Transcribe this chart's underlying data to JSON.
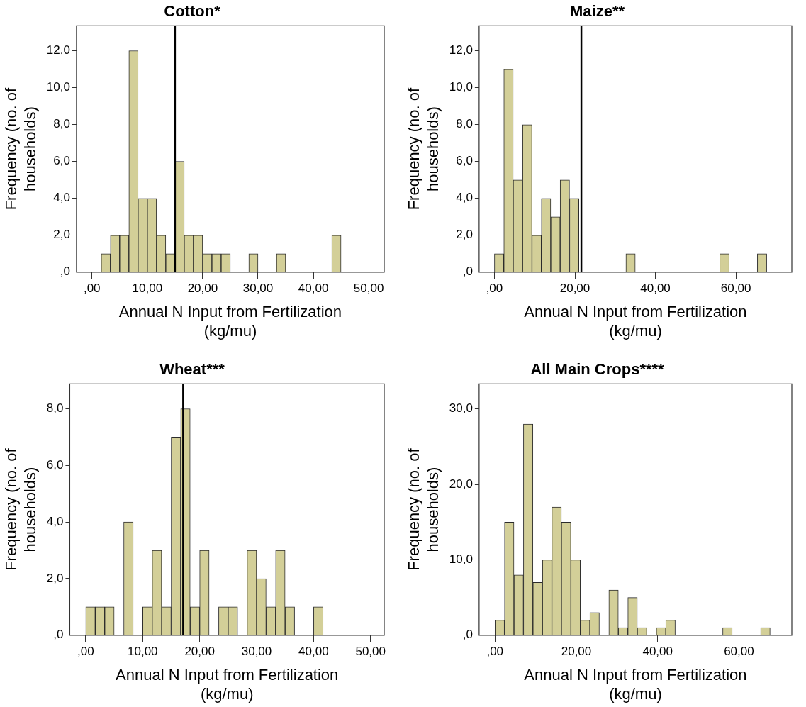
{
  "chart_data": [
    {
      "type": "histogram",
      "title": "Cotton*",
      "xlabel": "Annual N Input from Fertilization\n(kg/mu)",
      "ylabel": "Frequency (no. of\nhouseholds)",
      "color": "#d3cf98",
      "bins": [
        1.67,
        3.33,
        5,
        6.67,
        8.33,
        10,
        11.67,
        13.33,
        15,
        16.67,
        18.33,
        20,
        21.67,
        23.33,
        25,
        26.67,
        28.33,
        30,
        31.67,
        33.33,
        35,
        36.67,
        38.33,
        40,
        41.67,
        43.33,
        45
      ],
      "values": [
        1,
        2,
        2,
        12,
        4,
        4,
        2,
        1,
        6,
        2,
        2,
        1,
        1,
        1,
        0,
        0,
        1,
        0,
        0,
        1,
        0,
        0,
        0,
        0,
        0,
        2
      ],
      "xlim": [
        -2.8,
        52.8
      ],
      "xticks": [
        {
          "value": 0,
          "label": ",00"
        },
        {
          "value": 10,
          "label": "10,00"
        },
        {
          "value": 20,
          "label": "20,00"
        },
        {
          "value": 30,
          "label": "30,00"
        },
        {
          "value": 40,
          "label": "40,00"
        },
        {
          "value": 50,
          "label": "50,00"
        }
      ],
      "ylim": [
        0,
        13.35
      ],
      "yticks": [
        {
          "value": 0,
          "label": ",0"
        },
        {
          "value": 2,
          "label": "2,0"
        },
        {
          "value": 4,
          "label": "4,0"
        },
        {
          "value": 6,
          "label": "6,0"
        },
        {
          "value": 8,
          "label": "8,0"
        },
        {
          "value": 10,
          "label": "10,0"
        },
        {
          "value": 12,
          "label": "12,0"
        }
      ],
      "ref_lines": [
        {
          "axis": "x",
          "value": 15,
          "color": "#000000"
        }
      ],
      "grid": false,
      "legend": false
    },
    {
      "type": "histogram",
      "title": "Maize**",
      "xlabel": "Annual N Input from Fertilization\n(kg/mu)",
      "ylabel": "Frequency (no. of\nhouseholds)",
      "color": "#d3cf98",
      "bins": [
        0,
        2.33,
        4.67,
        7,
        9.33,
        11.67,
        14,
        16.33,
        18.67,
        21,
        23.33,
        25.67,
        28,
        30.33,
        32.67,
        35,
        37.33,
        39.67,
        42,
        44.33,
        46.67,
        49,
        51.33,
        53.67,
        56,
        58.33,
        60.67,
        63,
        65.33,
        67.67
      ],
      "values": [
        1,
        11,
        5,
        8,
        2,
        4,
        3,
        5,
        4,
        0,
        0,
        0,
        0,
        0,
        1,
        0,
        0,
        0,
        0,
        0,
        0,
        0,
        0,
        0,
        1,
        0,
        0,
        0,
        1
      ],
      "xlim": [
        -3.8,
        73.9
      ],
      "xticks": [
        {
          "value": 0,
          "label": ",00"
        },
        {
          "value": 20,
          "label": "20,00"
        },
        {
          "value": 40,
          "label": "40,00"
        },
        {
          "value": 60,
          "label": "60,00"
        }
      ],
      "ylim": [
        0,
        13.36
      ],
      "yticks": [
        {
          "value": 0,
          "label": ",0"
        },
        {
          "value": 2,
          "label": "2,0"
        },
        {
          "value": 4,
          "label": "4,0"
        },
        {
          "value": 6,
          "label": "6,0"
        },
        {
          "value": 8,
          "label": "8,0"
        },
        {
          "value": 10,
          "label": "10,0"
        },
        {
          "value": 12,
          "label": "12,0"
        }
      ],
      "ref_lines": [
        {
          "axis": "x",
          "value": 21.6,
          "color": "#000000"
        }
      ],
      "grid": false,
      "legend": false
    },
    {
      "type": "histogram",
      "title": "Wheat***",
      "xlabel": "Annual N Input from Fertilization\n(kg/mu)",
      "ylabel": "Frequency (no. of\nhouseholds)",
      "color": "#d3cf98",
      "bins": [
        0,
        1.67,
        3.33,
        5,
        6.67,
        8.33,
        10,
        11.67,
        13.33,
        15,
        16.67,
        18.33,
        20,
        21.67,
        23.33,
        25,
        26.67,
        28.33,
        30,
        31.67,
        33.33,
        35,
        36.67,
        38.33,
        40,
        41.67
      ],
      "values": [
        1,
        1,
        1,
        0,
        4,
        0,
        1,
        3,
        1,
        7,
        8,
        1,
        3,
        0,
        1,
        1,
        0,
        3,
        2,
        1,
        3,
        1,
        0,
        0,
        1
      ],
      "xlim": [
        -2.8,
        52.4
      ],
      "xticks": [
        {
          "value": 0,
          "label": ",00"
        },
        {
          "value": 10,
          "label": "10,00"
        },
        {
          "value": 20,
          "label": "20,00"
        },
        {
          "value": 30,
          "label": "30,00"
        },
        {
          "value": 40,
          "label": "40,00"
        },
        {
          "value": 50,
          "label": "50,00"
        }
      ],
      "ylim": [
        0,
        8.88
      ],
      "yticks": [
        {
          "value": 0,
          "label": ",0"
        },
        {
          "value": 2,
          "label": "2,0"
        },
        {
          "value": 4,
          "label": "4,0"
        },
        {
          "value": 6,
          "label": "6,0"
        },
        {
          "value": 8,
          "label": "8,0"
        }
      ],
      "ref_lines": [
        {
          "axis": "x",
          "value": 17.1,
          "color": "#000000"
        }
      ],
      "grid": false,
      "legend": false
    },
    {
      "type": "histogram",
      "title": "All Main Crops****",
      "xlabel": "Annual N Input from Fertilization\n(kg/mu)",
      "ylabel": "Frequency (no. of\nhouseholds)",
      "color": "#d3cf98",
      "bins": [
        0,
        2.33,
        4.67,
        7,
        9.33,
        11.67,
        14,
        16.33,
        18.67,
        21,
        23.33,
        25.67,
        28,
        30.33,
        32.67,
        35,
        37.33,
        39.67,
        42,
        44.33,
        46.67,
        49,
        51.33,
        53.67,
        56,
        58.33,
        60.67,
        63,
        65.33,
        67.67
      ],
      "values": [
        2,
        15,
        8,
        28,
        7,
        10,
        17,
        15,
        10,
        2,
        3,
        0,
        6,
        1,
        5,
        1,
        0,
        1,
        2,
        0,
        0,
        0,
        0,
        0,
        1,
        0,
        0,
        0,
        1
      ],
      "xlim": [
        -3.9,
        73
      ],
      "xticks": [
        {
          "value": 0,
          "label": ",00"
        },
        {
          "value": 20,
          "label": "20,00"
        },
        {
          "value": 40,
          "label": "40,00"
        },
        {
          "value": 60,
          "label": "60,00"
        }
      ],
      "ylim": [
        0,
        33.33
      ],
      "yticks": [
        {
          "value": 0,
          "label": ",0"
        },
        {
          "value": 10,
          "label": "10,0"
        },
        {
          "value": 20,
          "label": "20,0"
        },
        {
          "value": 30,
          "label": "30,0"
        }
      ],
      "grid": false,
      "legend": false
    }
  ]
}
